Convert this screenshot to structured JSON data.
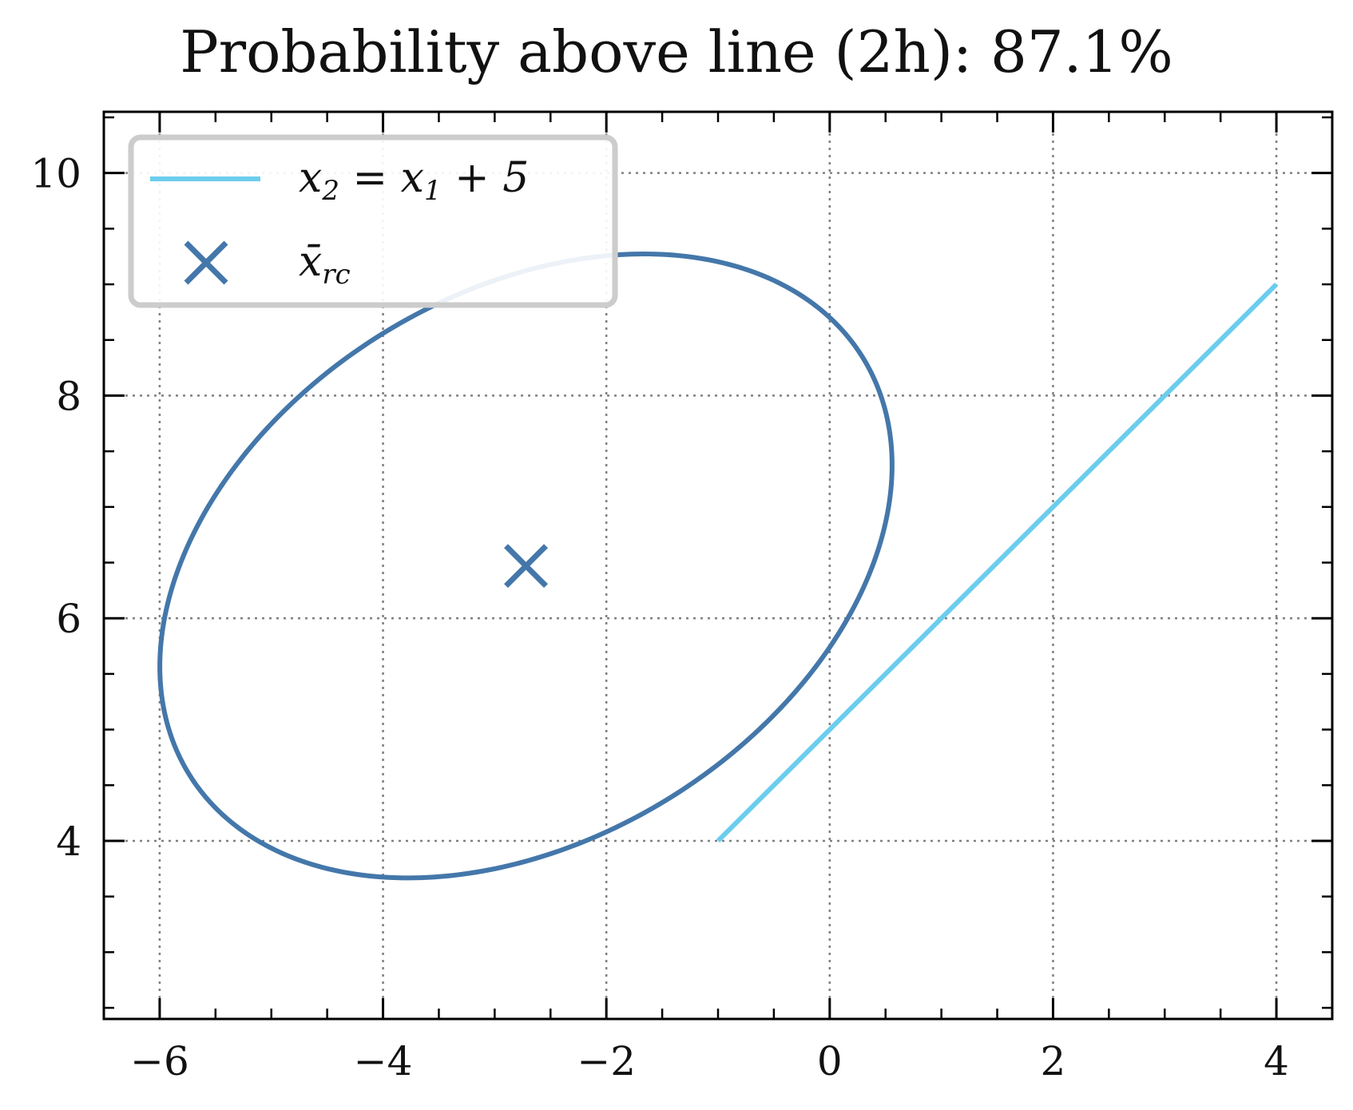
{
  "chart_data": {
    "type": "line",
    "title": "Probability above line (2h): 87.1%",
    "xlabel": "",
    "ylabel": "",
    "xlim": [
      -6.5,
      4.5
    ],
    "ylim": [
      2.4,
      10.55
    ],
    "grid": true,
    "x_ticks": [
      -6,
      -4,
      -2,
      0,
      2,
      4
    ],
    "x_tick_labels": [
      "−6",
      "−4",
      "−2",
      "0",
      "2",
      "4"
    ],
    "y_ticks": [
      4,
      6,
      8,
      10
    ],
    "y_tick_labels": [
      "4",
      "6",
      "8",
      "10"
    ],
    "legend": {
      "placement": "top-left",
      "entries": [
        {
          "label": "x2 = x1 + 5",
          "math": {
            "a": "x",
            "a_sub": "2",
            "eq": " = ",
            "b": "x",
            "b_sub": "1",
            "rest": " + 5"
          },
          "marker": "line",
          "color": "#6BCDEE"
        },
        {
          "label": "x̄rc",
          "math": {
            "a": "x̄",
            "a_sub": "rc"
          },
          "marker": "x",
          "color": "#4477AA"
        }
      ]
    },
    "series": [
      {
        "name": "x2 = x1 + 5",
        "kind": "line",
        "color": "#6BCDEE",
        "x": [
          -1,
          4
        ],
        "y": [
          4,
          9
        ]
      },
      {
        "name": "x̄rc",
        "kind": "marker",
        "marker": "x",
        "color": "#4477AA",
        "x": [
          -2.72
        ],
        "y": [
          6.47
        ]
      },
      {
        "name": "ellipse",
        "kind": "ellipse",
        "color": "#4477AA",
        "center": [
          -2.72,
          6.47
        ],
        "semi_axes": [
          3.55,
          2.45
        ],
        "angle_deg": 32
      }
    ]
  }
}
